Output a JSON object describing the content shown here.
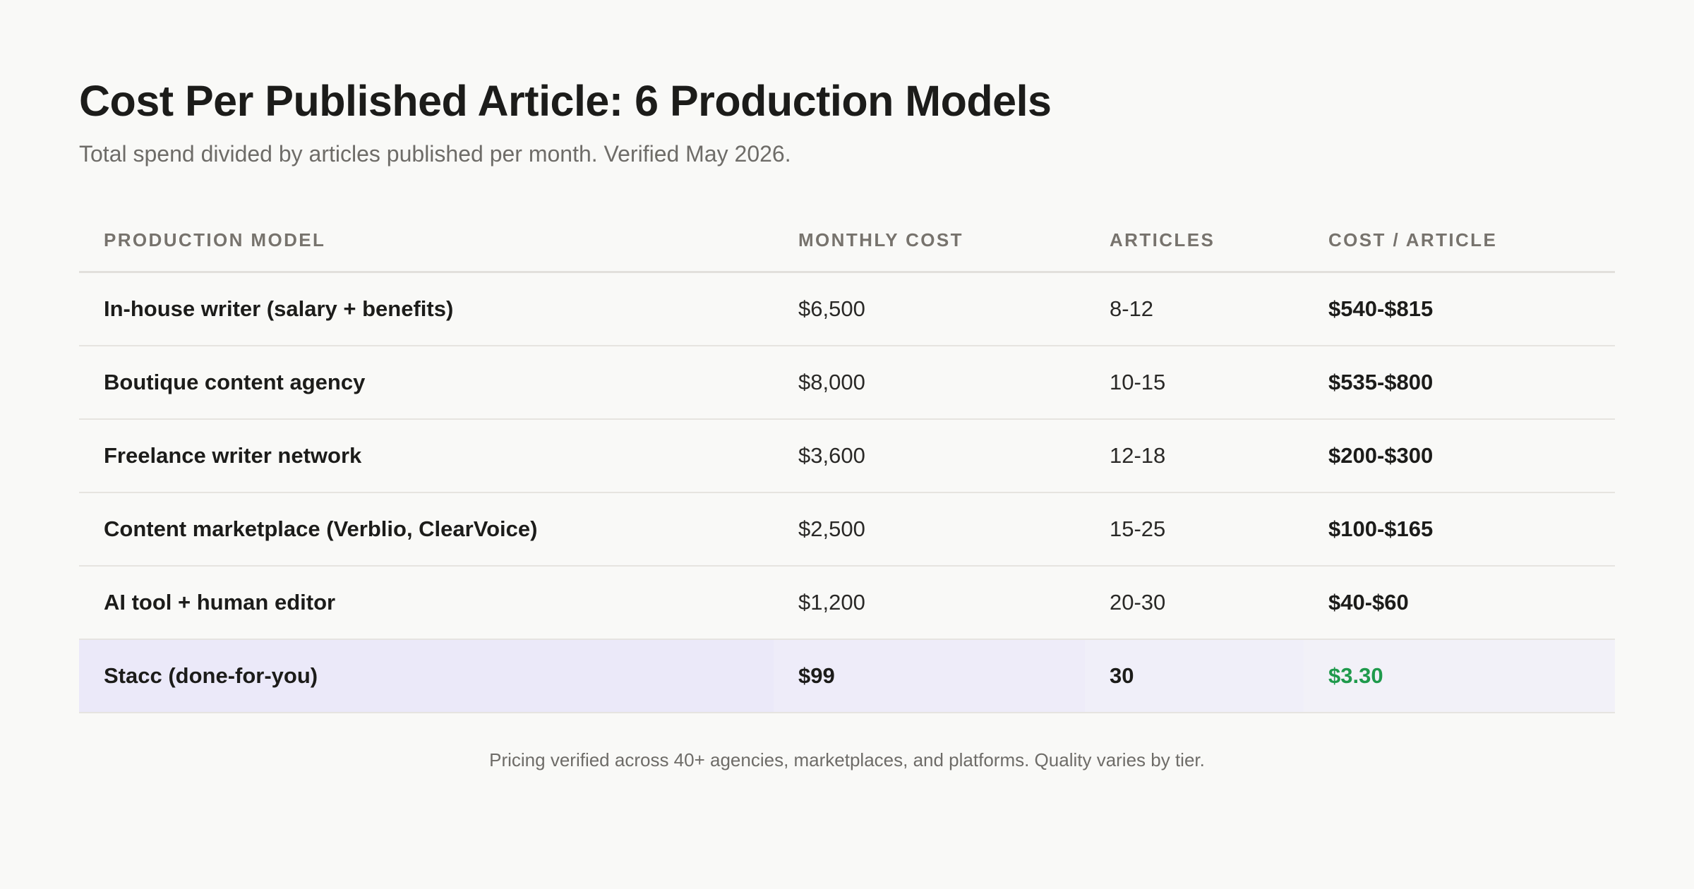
{
  "chart_data": {
    "type": "table",
    "title": "Cost Per Published Article: 6 Production Models",
    "subtitle": "Total spend divided by articles published per month. Verified May 2026.",
    "columns": [
      "PRODUCTION MODEL",
      "MONTHLY COST",
      "ARTICLES",
      "COST / ARTICLE"
    ],
    "rows": [
      {
        "model": "In-house writer (salary + benefits)",
        "monthly_cost": "$6,500",
        "articles": "8-12",
        "cost_per_article": "$540-$815"
      },
      {
        "model": "Boutique content agency",
        "monthly_cost": "$8,000",
        "articles": "10-15",
        "cost_per_article": "$535-$800"
      },
      {
        "model": "Freelance writer network",
        "monthly_cost": "$3,600",
        "articles": "12-18",
        "cost_per_article": "$200-$300"
      },
      {
        "model": "Content marketplace (Verblio, ClearVoice)",
        "monthly_cost": "$2,500",
        "articles": "15-25",
        "cost_per_article": "$100-$165"
      },
      {
        "model": "AI tool + human editor",
        "monthly_cost": "$1,200",
        "articles": "20-30",
        "cost_per_article": "$40-$60"
      },
      {
        "model": "Stacc (done-for-you)",
        "monthly_cost": "$99",
        "articles": "30",
        "cost_per_article": "$3.30",
        "highlighted": true
      }
    ],
    "footnote": "Pricing verified across 40+ agencies, marketplaces, and platforms. Quality varies by tier."
  },
  "colors": {
    "background": "#f9f9f7",
    "highlight_row": "#ebe9f9",
    "highlight_value": "#1f9a4c",
    "header_text": "#77736d"
  }
}
